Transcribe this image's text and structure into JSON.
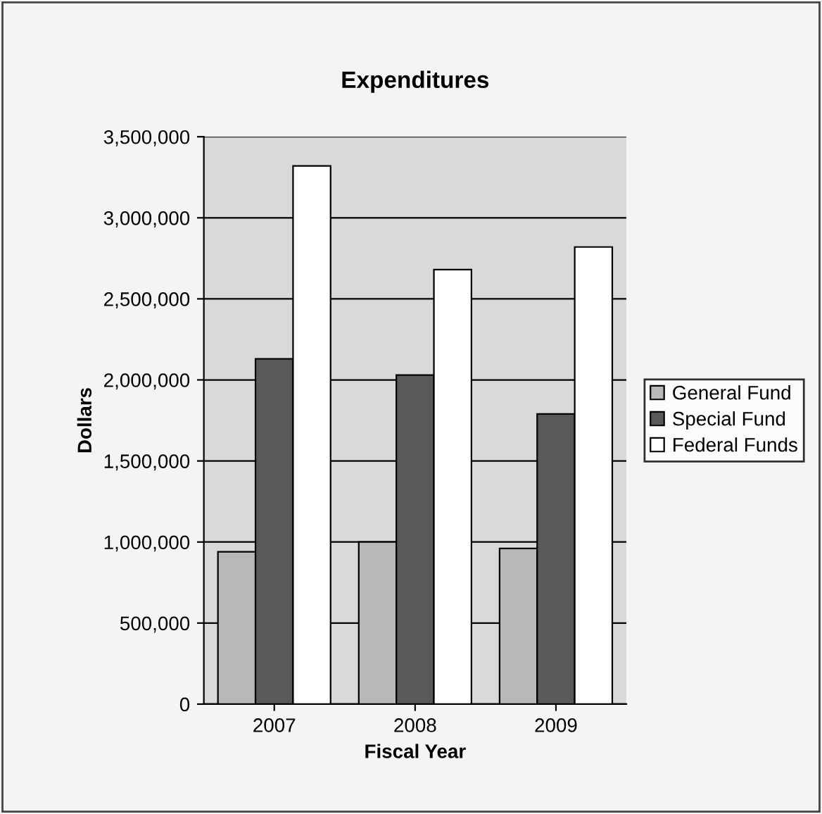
{
  "chart_data": {
    "type": "bar",
    "title": "Expenditures",
    "xlabel": "Fiscal Year",
    "ylabel": "Dollars",
    "categories": [
      "2007",
      "2008",
      "2009"
    ],
    "series": [
      {
        "name": "General Fund",
        "color": "#b8b8b8",
        "values": [
          940000,
          1000000,
          960000
        ]
      },
      {
        "name": "Special Fund",
        "color": "#595959",
        "values": [
          2130000,
          2030000,
          1790000
        ]
      },
      {
        "name": "Federal Funds",
        "color": "#ffffff",
        "values": [
          3320000,
          2680000,
          2820000
        ]
      }
    ],
    "ylim": [
      0,
      3500000
    ],
    "yticks": [
      {
        "value": 0,
        "label": "0"
      },
      {
        "value": 500000,
        "label": "500,000"
      },
      {
        "value": 1000000,
        "label": "1,000,000"
      },
      {
        "value": 1500000,
        "label": "1,500,000"
      },
      {
        "value": 2000000,
        "label": "2,000,000"
      },
      {
        "value": 2500000,
        "label": "2,500,000"
      },
      {
        "value": 3000000,
        "label": "3,000,000"
      },
      {
        "value": 3500000,
        "label": "3,500,000"
      }
    ],
    "grid": "y",
    "legend": "right"
  }
}
